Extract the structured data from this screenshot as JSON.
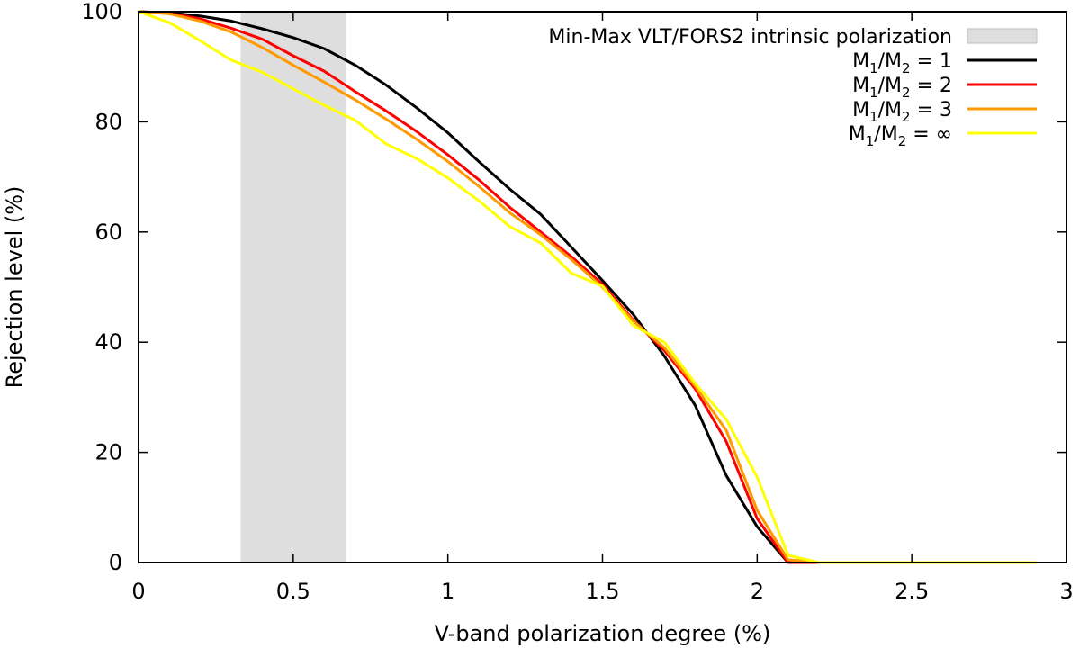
{
  "chart_data": {
    "type": "line",
    "title": "",
    "xlabel": "V-band polarization degree (%)",
    "ylabel": "Rejection level (%)",
    "xlim": [
      0,
      3
    ],
    "ylim": [
      0,
      100
    ],
    "xticks": [
      0,
      0.5,
      1,
      1.5,
      2,
      2.5,
      3
    ],
    "xtick_labels": [
      "0",
      "0.5",
      "1",
      "1.5",
      "2",
      "2.5",
      "3"
    ],
    "yticks": [
      0,
      20,
      40,
      60,
      80,
      100
    ],
    "ytick_labels": [
      "0",
      "20",
      "40",
      "60",
      "80",
      "100"
    ],
    "grid": false,
    "legend_position": "top-right",
    "shaded_band": {
      "label": "Min-Max VLT/FORS2 intrinsic polarization",
      "x_range": [
        0.33,
        0.67
      ],
      "color": "#dedede"
    },
    "series": [
      {
        "name": "M1/M2 = 1",
        "label_parts": [
          "M",
          "1",
          "/M",
          "2",
          " = 1"
        ],
        "color": "#000000",
        "x": [
          0,
          0.1,
          0.2,
          0.3,
          0.4,
          0.5,
          0.6,
          0.7,
          0.8,
          0.9,
          1.0,
          1.1,
          1.2,
          1.3,
          1.4,
          1.5,
          1.6,
          1.7,
          1.8,
          1.9,
          2.0,
          2.1,
          2.2,
          2.5,
          2.9
        ],
        "y": [
          100,
          99.8,
          99.2,
          98.3,
          96.9,
          95.3,
          93.3,
          90.3,
          86.7,
          82.5,
          78.0,
          72.8,
          67.8,
          63.2,
          57.2,
          51.2,
          45.0,
          37.5,
          28.5,
          15.8,
          6.5,
          0,
          0,
          0,
          0
        ]
      },
      {
        "name": "M1/M2 = 2",
        "label_parts": [
          "M",
          "1",
          "/M",
          "2",
          " = 2"
        ],
        "color": "#ff0000",
        "x": [
          0,
          0.1,
          0.2,
          0.3,
          0.4,
          0.5,
          0.6,
          0.7,
          0.8,
          0.9,
          1.0,
          1.1,
          1.2,
          1.3,
          1.4,
          1.5,
          1.6,
          1.7,
          1.8,
          1.9,
          2.0,
          2.1,
          2.2,
          2.5,
          2.9
        ],
        "y": [
          100,
          99.7,
          98.7,
          97.0,
          95.0,
          92.0,
          89.2,
          85.5,
          82.0,
          78.2,
          74.0,
          69.5,
          64.5,
          60.0,
          55.5,
          50.5,
          44.0,
          38.5,
          31.5,
          22.0,
          8.0,
          0,
          0,
          0,
          0
        ]
      },
      {
        "name": "M1/M2 = 3",
        "label_parts": [
          "M",
          "1",
          "/M",
          "2",
          " = 3"
        ],
        "color": "#ff9900",
        "x": [
          0,
          0.1,
          0.2,
          0.3,
          0.4,
          0.5,
          0.6,
          0.7,
          0.8,
          0.9,
          1.0,
          1.1,
          1.2,
          1.3,
          1.4,
          1.5,
          1.6,
          1.7,
          1.8,
          1.9,
          2.0,
          2.1,
          2.2,
          2.5,
          2.9
        ],
        "y": [
          100,
          99.6,
          98.3,
          96.3,
          93.5,
          90.3,
          87.2,
          84.0,
          80.5,
          76.8,
          72.8,
          68.3,
          63.5,
          59.5,
          55.0,
          50.0,
          43.8,
          39.0,
          32.0,
          24.0,
          9.5,
          0.5,
          0,
          0,
          0
        ]
      },
      {
        "name": "M1/M2 = ∞",
        "label_parts": [
          "M",
          "1",
          "/M",
          "2",
          " = ∞"
        ],
        "color": "#ffff00",
        "x": [
          0,
          0.1,
          0.2,
          0.3,
          0.4,
          0.5,
          0.6,
          0.7,
          0.8,
          0.9,
          1.0,
          1.1,
          1.2,
          1.3,
          1.4,
          1.5,
          1.6,
          1.7,
          1.8,
          1.9,
          2.0,
          2.1,
          2.2,
          2.5,
          2.9
        ],
        "y": [
          100,
          98.0,
          94.7,
          91.2,
          89.0,
          86.0,
          83.0,
          80.3,
          76.0,
          73.3,
          69.8,
          65.7,
          61.0,
          58.0,
          52.5,
          50.2,
          43.0,
          40.0,
          32.5,
          26.0,
          15.5,
          1.3,
          0,
          0,
          0
        ]
      }
    ]
  }
}
